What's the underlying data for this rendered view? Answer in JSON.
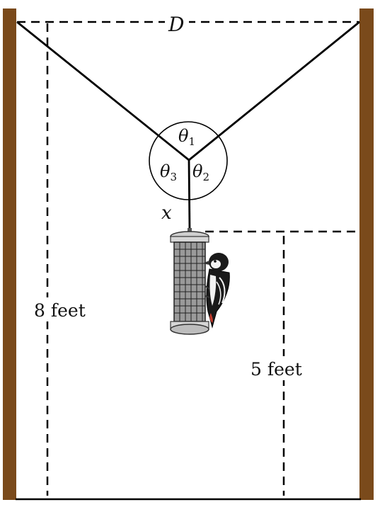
{
  "labels": {
    "distance": "D",
    "angle_1": "θ",
    "angle_1_sub": "1",
    "angle_2": "θ",
    "angle_2_sub": "2",
    "angle_3": "θ",
    "angle_3_sub": "3",
    "rope_length": "x",
    "pole_height": "8 feet",
    "feeder_height": "5 feet"
  },
  "colors": {
    "pole": "#7a4a1b",
    "line": "#000000",
    "background": "#ffffff",
    "feeder_metal": "#8c8c8c",
    "bird_black": "#1a1a1a",
    "bird_red": "#c0392b"
  },
  "icons": {
    "feeder": "bird-feeder-icon",
    "bird": "woodpecker-icon"
  }
}
